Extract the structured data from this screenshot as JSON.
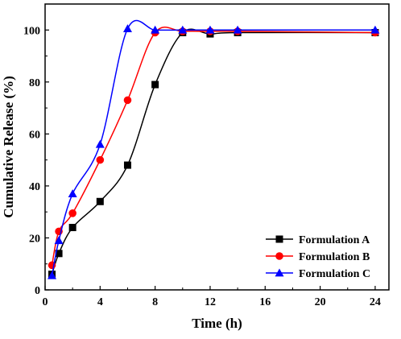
{
  "chart_data": {
    "type": "line",
    "title": "",
    "xlabel": "Time (h)",
    "ylabel": "Cumulative Release (%)",
    "xlim": [
      0,
      25
    ],
    "ylim": [
      0,
      110
    ],
    "xticks": [
      0,
      4,
      8,
      12,
      16,
      20,
      24
    ],
    "yticks": [
      0,
      20,
      40,
      60,
      80,
      100
    ],
    "grid": false,
    "legend_position": "bottom-right",
    "series": [
      {
        "name": "Formulation A",
        "color": "#000000",
        "marker": "square",
        "x": [
          0.5,
          1,
          2,
          4,
          6,
          8,
          10,
          12,
          14,
          24
        ],
        "y": [
          6,
          14,
          24,
          34,
          48,
          79,
          99,
          98.5,
          99,
          99
        ]
      },
      {
        "name": "Formulation B",
        "color": "#ff0000",
        "marker": "circle",
        "x": [
          0.5,
          1,
          2,
          4,
          6,
          8,
          10,
          12,
          14,
          24
        ],
        "y": [
          9.5,
          22.5,
          29.5,
          50,
          73,
          99,
          99.5,
          99.5,
          99.5,
          99
        ]
      },
      {
        "name": "Formulation C",
        "color": "#0000ff",
        "marker": "triangle",
        "x": [
          0.5,
          1,
          2,
          4,
          6,
          8,
          10,
          12,
          14,
          24
        ],
        "y": [
          5.5,
          19,
          37,
          56,
          100.5,
          100,
          100,
          100,
          100,
          100
        ]
      }
    ]
  }
}
